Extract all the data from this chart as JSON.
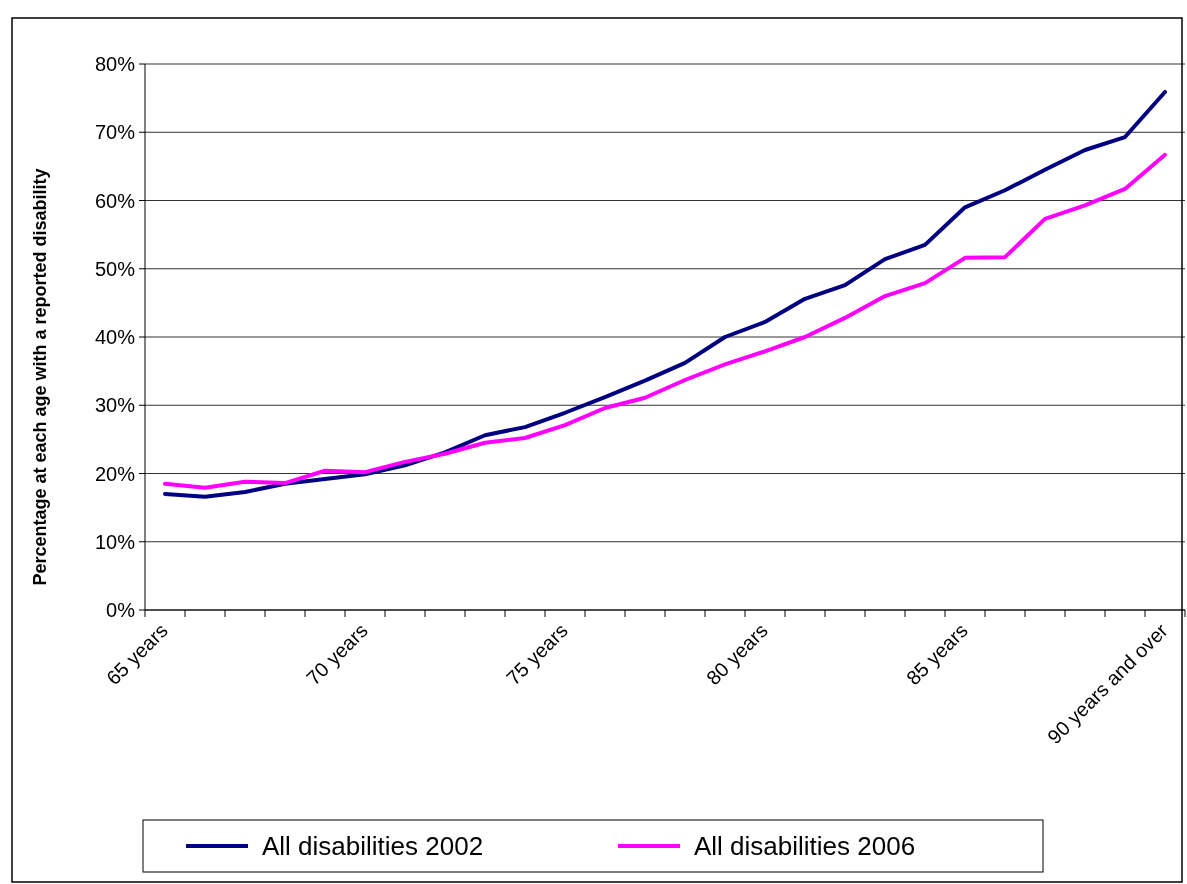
{
  "chart_data": {
    "type": "line",
    "ylabel": "Percentage at each age with a reported disability",
    "categories": [
      "65 years",
      null,
      null,
      null,
      null,
      "70 years",
      null,
      null,
      null,
      null,
      "75 years",
      null,
      null,
      null,
      null,
      "80 years",
      null,
      null,
      null,
      null,
      "85 years",
      null,
      null,
      null,
      null,
      "90 years and over"
    ],
    "series": [
      {
        "name": "All disabilities 2002",
        "color": "#000080",
        "values": [
          17.0,
          16.6,
          17.3,
          18.5,
          19.2,
          19.9,
          21.2,
          23.1,
          25.6,
          26.8,
          28.9,
          31.2,
          33.6,
          36.2,
          40.0,
          42.2,
          45.6,
          47.6,
          51.4,
          53.5,
          59.0,
          61.5,
          64.5,
          67.4,
          69.3,
          75.9
        ]
      },
      {
        "name": "All disabilities 2006",
        "color": "#ff00ff",
        "values": [
          18.5,
          17.9,
          18.8,
          18.6,
          20.4,
          20.2,
          21.7,
          22.9,
          24.5,
          25.2,
          27.1,
          29.6,
          31.1,
          33.7,
          36.0,
          37.9,
          40.0,
          42.8,
          46.0,
          47.9,
          51.6,
          51.7,
          57.3,
          59.3,
          61.7,
          66.7
        ]
      }
    ],
    "ylim": [
      0,
      80
    ],
    "yticks": [
      {
        "value": 0,
        "label": "0%"
      },
      {
        "value": 10,
        "label": "10%"
      },
      {
        "value": 20,
        "label": "20%"
      },
      {
        "value": 30,
        "label": "30%"
      },
      {
        "value": 40,
        "label": "40%"
      },
      {
        "value": 50,
        "label": "50%"
      },
      {
        "value": 60,
        "label": "60%"
      },
      {
        "value": 70,
        "label": "70%"
      },
      {
        "value": 80,
        "label": "80%"
      }
    ],
    "grid": "y",
    "legend": "bottom",
    "marker": "none",
    "line_style": "solid"
  }
}
